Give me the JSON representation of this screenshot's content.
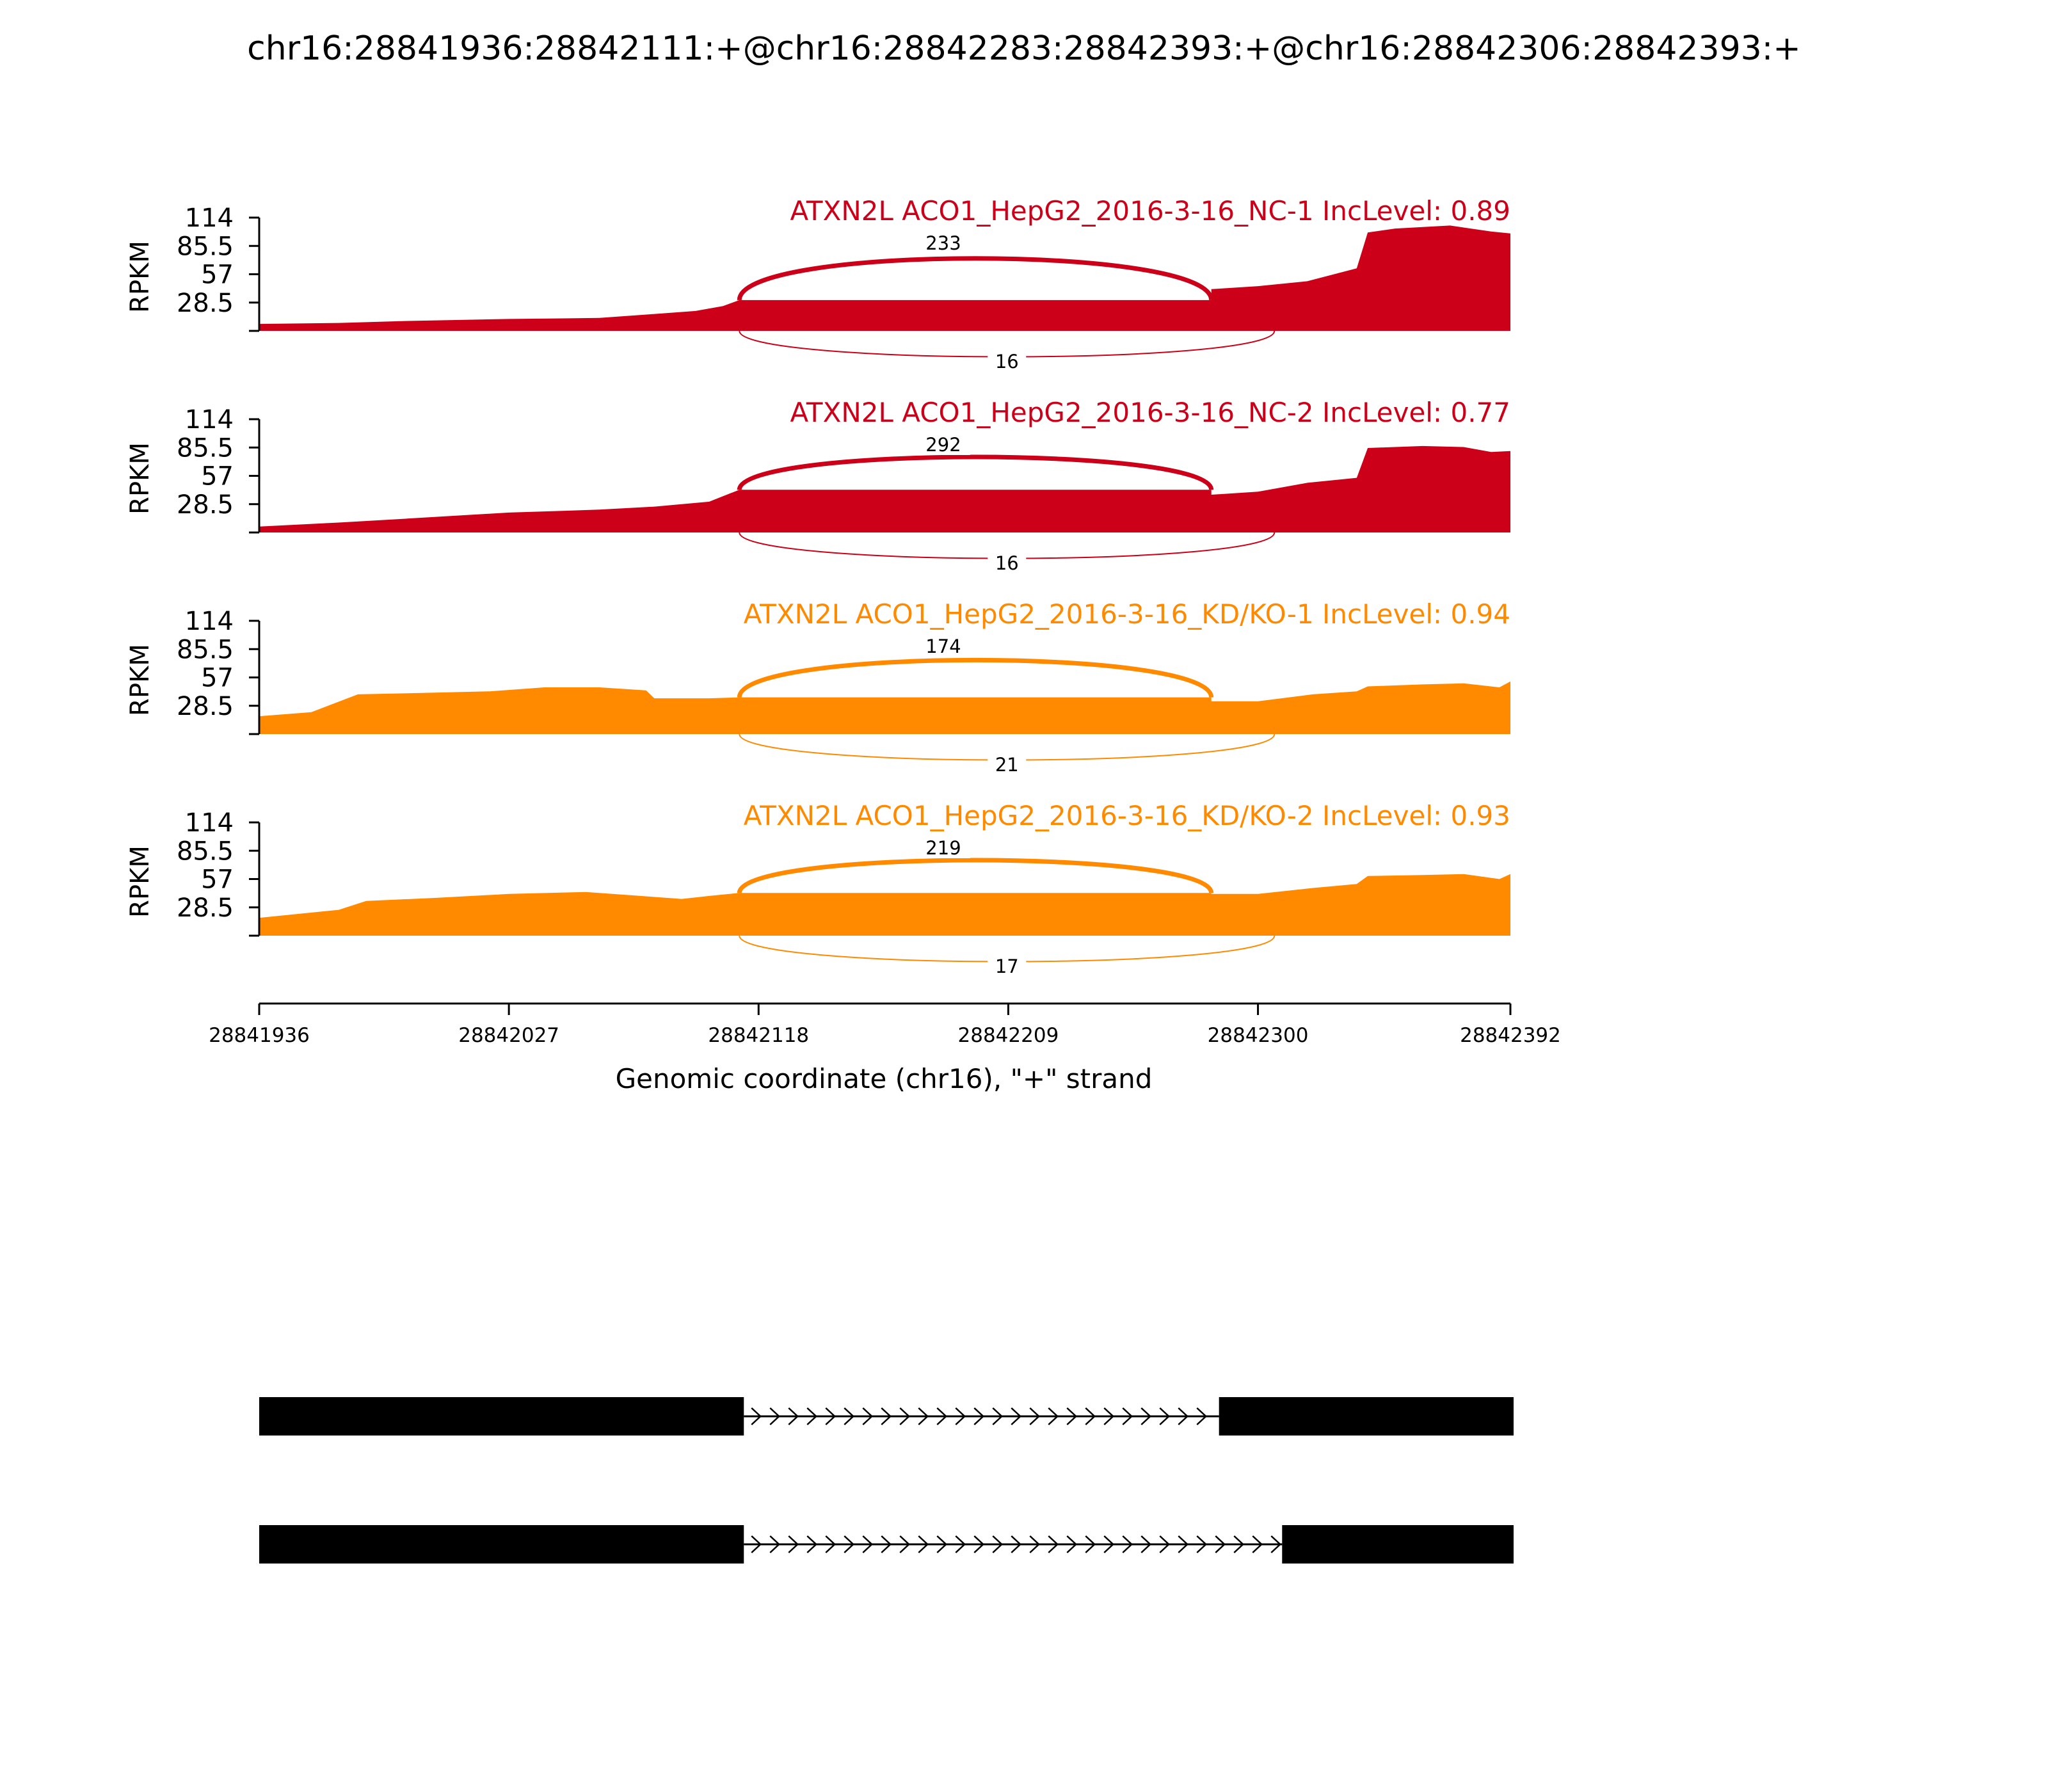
{
  "title": "chr16:28841936:28842111:+@chr16:28842283:28842393:+@chr16:28842306:28842393:+",
  "chart_data": {
    "type": "area",
    "title": "chr16:28841936:28842111:+@chr16:28842283:28842393:+@chr16:28842306:28842393:+",
    "xlabel": "Genomic coordinate (chr16), \"+\" strand",
    "ylabel": "RPKM",
    "xlim": [
      28841936,
      28842392
    ],
    "ylim": [
      0,
      114
    ],
    "x_ticks": [
      "28841936",
      "28842027",
      "28842118",
      "28842209",
      "28842300",
      "28842392"
    ],
    "y_ticks": [
      "114",
      "85.5",
      "57",
      "28.5"
    ],
    "grid": false,
    "colors": {
      "NC": "#cc0018",
      "KD": "#ff8a00",
      "exon": "#000000"
    },
    "junction_coords": {
      "upstream_exon_end": 28842111,
      "inclusion_acceptor": 28842283,
      "exclusion_acceptor": 28842306
    },
    "series": [
      {
        "name": "ATXN2L ACO1_HepG2_2016-3-16_NC-1 IncLevel: 0.89",
        "group": "NC",
        "inclusion_reads": "233",
        "exclusion_reads": "16",
        "coverage": [
          [
            28841936,
            7
          ],
          [
            28841965,
            8
          ],
          [
            28841990,
            10
          ],
          [
            28842027,
            12
          ],
          [
            28842060,
            13
          ],
          [
            28842080,
            17
          ],
          [
            28842095,
            20
          ],
          [
            28842105,
            25
          ],
          [
            28842111,
            31
          ],
          [
            28842283,
            31
          ],
          [
            28842283,
            42
          ],
          [
            28842300,
            45
          ],
          [
            28842318,
            50
          ],
          [
            28842336,
            63
          ],
          [
            28842340,
            99
          ],
          [
            28842350,
            103
          ],
          [
            28842370,
            106
          ],
          [
            28842385,
            100
          ],
          [
            28842392,
            98
          ]
        ]
      },
      {
        "name": "ATXN2L ACO1_HepG2_2016-3-16_NC-2 IncLevel: 0.77",
        "group": "NC",
        "inclusion_reads": "292",
        "exclusion_reads": "16",
        "coverage": [
          [
            28841936,
            6
          ],
          [
            28841965,
            10
          ],
          [
            28841990,
            14
          ],
          [
            28842027,
            20
          ],
          [
            28842060,
            23
          ],
          [
            28842080,
            26
          ],
          [
            28842100,
            31
          ],
          [
            28842111,
            43
          ],
          [
            28842283,
            43
          ],
          [
            28842283,
            38
          ],
          [
            28842300,
            41
          ],
          [
            28842318,
            50
          ],
          [
            28842336,
            55
          ],
          [
            28842340,
            85
          ],
          [
            28842360,
            87
          ],
          [
            28842375,
            86
          ],
          [
            28842385,
            81
          ],
          [
            28842392,
            82
          ]
        ]
      },
      {
        "name": "ATXN2L ACO1_HepG2_2016-3-16_KD/KO-1 IncLevel: 0.94",
        "group": "KD",
        "inclusion_reads": "174",
        "exclusion_reads": "21",
        "coverage": [
          [
            28841936,
            18
          ],
          [
            28841955,
            22
          ],
          [
            28841972,
            40
          ],
          [
            28841990,
            41
          ],
          [
            28842020,
            43
          ],
          [
            28842040,
            47
          ],
          [
            28842060,
            47
          ],
          [
            28842077,
            44
          ],
          [
            28842080,
            36
          ],
          [
            28842100,
            36
          ],
          [
            28842111,
            37
          ],
          [
            28842283,
            37
          ],
          [
            28842283,
            33
          ],
          [
            28842300,
            33
          ],
          [
            28842320,
            40
          ],
          [
            28842336,
            43
          ],
          [
            28842340,
            48
          ],
          [
            28842360,
            50
          ],
          [
            28842375,
            51
          ],
          [
            28842388,
            47
          ],
          [
            28842392,
            53
          ]
        ]
      },
      {
        "name": "ATXN2L ACO1_HepG2_2016-3-16_KD/KO-2 IncLevel: 0.93",
        "group": "KD",
        "inclusion_reads": "219",
        "exclusion_reads": "17",
        "coverage": [
          [
            28841936,
            18
          ],
          [
            28841965,
            26
          ],
          [
            28841975,
            35
          ],
          [
            28842000,
            38
          ],
          [
            28842027,
            42
          ],
          [
            28842055,
            44
          ],
          [
            28842075,
            40
          ],
          [
            28842090,
            37
          ],
          [
            28842100,
            40
          ],
          [
            28842111,
            43
          ],
          [
            28842283,
            43
          ],
          [
            28842283,
            42
          ],
          [
            28842300,
            42
          ],
          [
            28842320,
            48
          ],
          [
            28842336,
            52
          ],
          [
            28842340,
            60
          ],
          [
            28842360,
            61
          ],
          [
            28842375,
            62
          ],
          [
            28842388,
            57
          ],
          [
            28842392,
            62
          ]
        ]
      }
    ]
  },
  "isoforms": [
    {
      "exons": [
        [
          28841936,
          28842111
        ],
        [
          28842283,
          28842392
        ]
      ]
    },
    {
      "exons": [
        [
          28841936,
          28842111
        ],
        [
          28842306,
          28842392
        ]
      ]
    }
  ]
}
